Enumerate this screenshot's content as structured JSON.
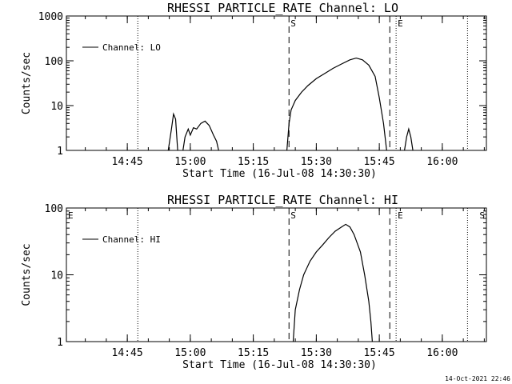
{
  "chart_data": [
    {
      "type": "line",
      "title": "RHESSI PARTICLE_RATE Channel: LO",
      "xlabel": "Start Time (16-Jul-08 14:30:30)",
      "ylabel": "Counts/sec",
      "yscale": "log",
      "ylim": [
        1,
        1000
      ],
      "ytick_labels": [
        "1",
        "10",
        "100",
        "1000"
      ],
      "ytick_values": [
        1,
        10,
        100,
        1000
      ],
      "xlim": [
        "14:30:30",
        "16:10:30"
      ],
      "xtick_labels": [
        "14:45",
        "15:00",
        "15:15",
        "15:30",
        "15:45",
        "16:00"
      ],
      "grid": false,
      "legend": {
        "position": "top-left",
        "entries": [
          "Channel: LO"
        ]
      },
      "markers": [
        {
          "label": "S",
          "time": "15:23:30",
          "style": "dashed"
        },
        {
          "label": "",
          "time": "15:47:30",
          "style": "dashed"
        },
        {
          "label": "E",
          "time": "15:49:00",
          "style": "dotted"
        }
      ],
      "dotted_lines": [
        "14:47:30",
        "16:06:00"
      ],
      "series": [
        {
          "name": "Channel: LO",
          "segments": [
            [
              [
                "14:54:45",
                1
              ],
              [
                "14:55:30",
                3
              ],
              [
                "14:56:00",
                6.5
              ],
              [
                "14:56:30",
                5
              ],
              [
                "14:57:00",
                1
              ]
            ],
            [
              [
                "14:58:15",
                1
              ],
              [
                "14:58:45",
                2
              ],
              [
                "14:59:30",
                3
              ],
              [
                "15:00:00",
                2.2
              ],
              [
                "15:00:45",
                3.2
              ],
              [
                "15:01:30",
                3
              ],
              [
                "15:02:30",
                4
              ],
              [
                "15:03:30",
                4.5
              ],
              [
                "15:04:30",
                3.6
              ],
              [
                "15:05:30",
                2.2
              ],
              [
                "15:06:15",
                1.6
              ],
              [
                "15:06:45",
                1
              ]
            ],
            [
              [
                "15:23:00",
                1
              ],
              [
                "15:23:30",
                4
              ],
              [
                "15:24:00",
                8
              ],
              [
                "15:25:00",
                13
              ],
              [
                "15:26:30",
                20
              ],
              [
                "15:28:00",
                28
              ],
              [
                "15:30:00",
                40
              ],
              [
                "15:32:00",
                52
              ],
              [
                "15:34:00",
                68
              ],
              [
                "15:36:00",
                85
              ],
              [
                "15:38:00",
                105
              ],
              [
                "15:39:30",
                115
              ],
              [
                "15:41:00",
                105
              ],
              [
                "15:42:30",
                80
              ],
              [
                "15:44:00",
                45
              ],
              [
                "15:45:00",
                15
              ],
              [
                "15:46:00",
                4
              ],
              [
                "15:46:45",
                1
              ]
            ],
            [
              [
                "15:51:00",
                1
              ],
              [
                "15:51:30",
                2
              ],
              [
                "15:52:00",
                3
              ],
              [
                "15:52:30",
                2
              ],
              [
                "15:53:00",
                1
              ]
            ]
          ]
        }
      ]
    },
    {
      "type": "line",
      "title": "RHESSI PARTICLE_RATE Channel: HI",
      "xlabel": "Start Time (16-Jul-08 14:30:30)",
      "ylabel": "Counts/sec",
      "yscale": "log",
      "ylim": [
        1,
        100
      ],
      "ytick_labels": [
        "1",
        "10",
        "100"
      ],
      "ytick_values": [
        1,
        10,
        100
      ],
      "xlim": [
        "14:30:30",
        "16:10:30"
      ],
      "xtick_labels": [
        "14:45",
        "15:00",
        "15:15",
        "15:30",
        "15:45",
        "16:00"
      ],
      "grid": false,
      "legend": {
        "position": "top-left",
        "entries": [
          "Channel: HI"
        ]
      },
      "markers": [
        {
          "label": "S",
          "time": "15:23:30",
          "style": "dashed"
        },
        {
          "label": "",
          "time": "15:47:30",
          "style": "dashed"
        },
        {
          "label": "E",
          "time": "15:49:00",
          "style": "dotted"
        }
      ],
      "corner_marks": [
        {
          "label": "E",
          "time": "14:30:30"
        },
        {
          "label": "S",
          "time": "16:10:30"
        }
      ],
      "dotted_lines": [
        "14:47:30",
        "16:06:00"
      ],
      "series": [
        {
          "name": "Channel: HI",
          "segments": [
            [
              [
                "15:24:30",
                1
              ],
              [
                "15:25:00",
                3
              ],
              [
                "15:26:00",
                6
              ],
              [
                "15:27:00",
                10
              ],
              [
                "15:28:30",
                16
              ],
              [
                "15:30:00",
                22
              ],
              [
                "15:31:30",
                28
              ],
              [
                "15:33:00",
                36
              ],
              [
                "15:34:30",
                45
              ],
              [
                "15:36:00",
                52
              ],
              [
                "15:37:00",
                57
              ],
              [
                "15:38:00",
                52
              ],
              [
                "15:39:00",
                40
              ],
              [
                "15:40:30",
                22
              ],
              [
                "15:41:30",
                10
              ],
              [
                "15:42:30",
                4
              ],
              [
                "15:43:00",
                2
              ],
              [
                "15:43:20",
                1
              ]
            ]
          ]
        }
      ]
    }
  ],
  "timestamp": "14-Oct-2021 22:46"
}
